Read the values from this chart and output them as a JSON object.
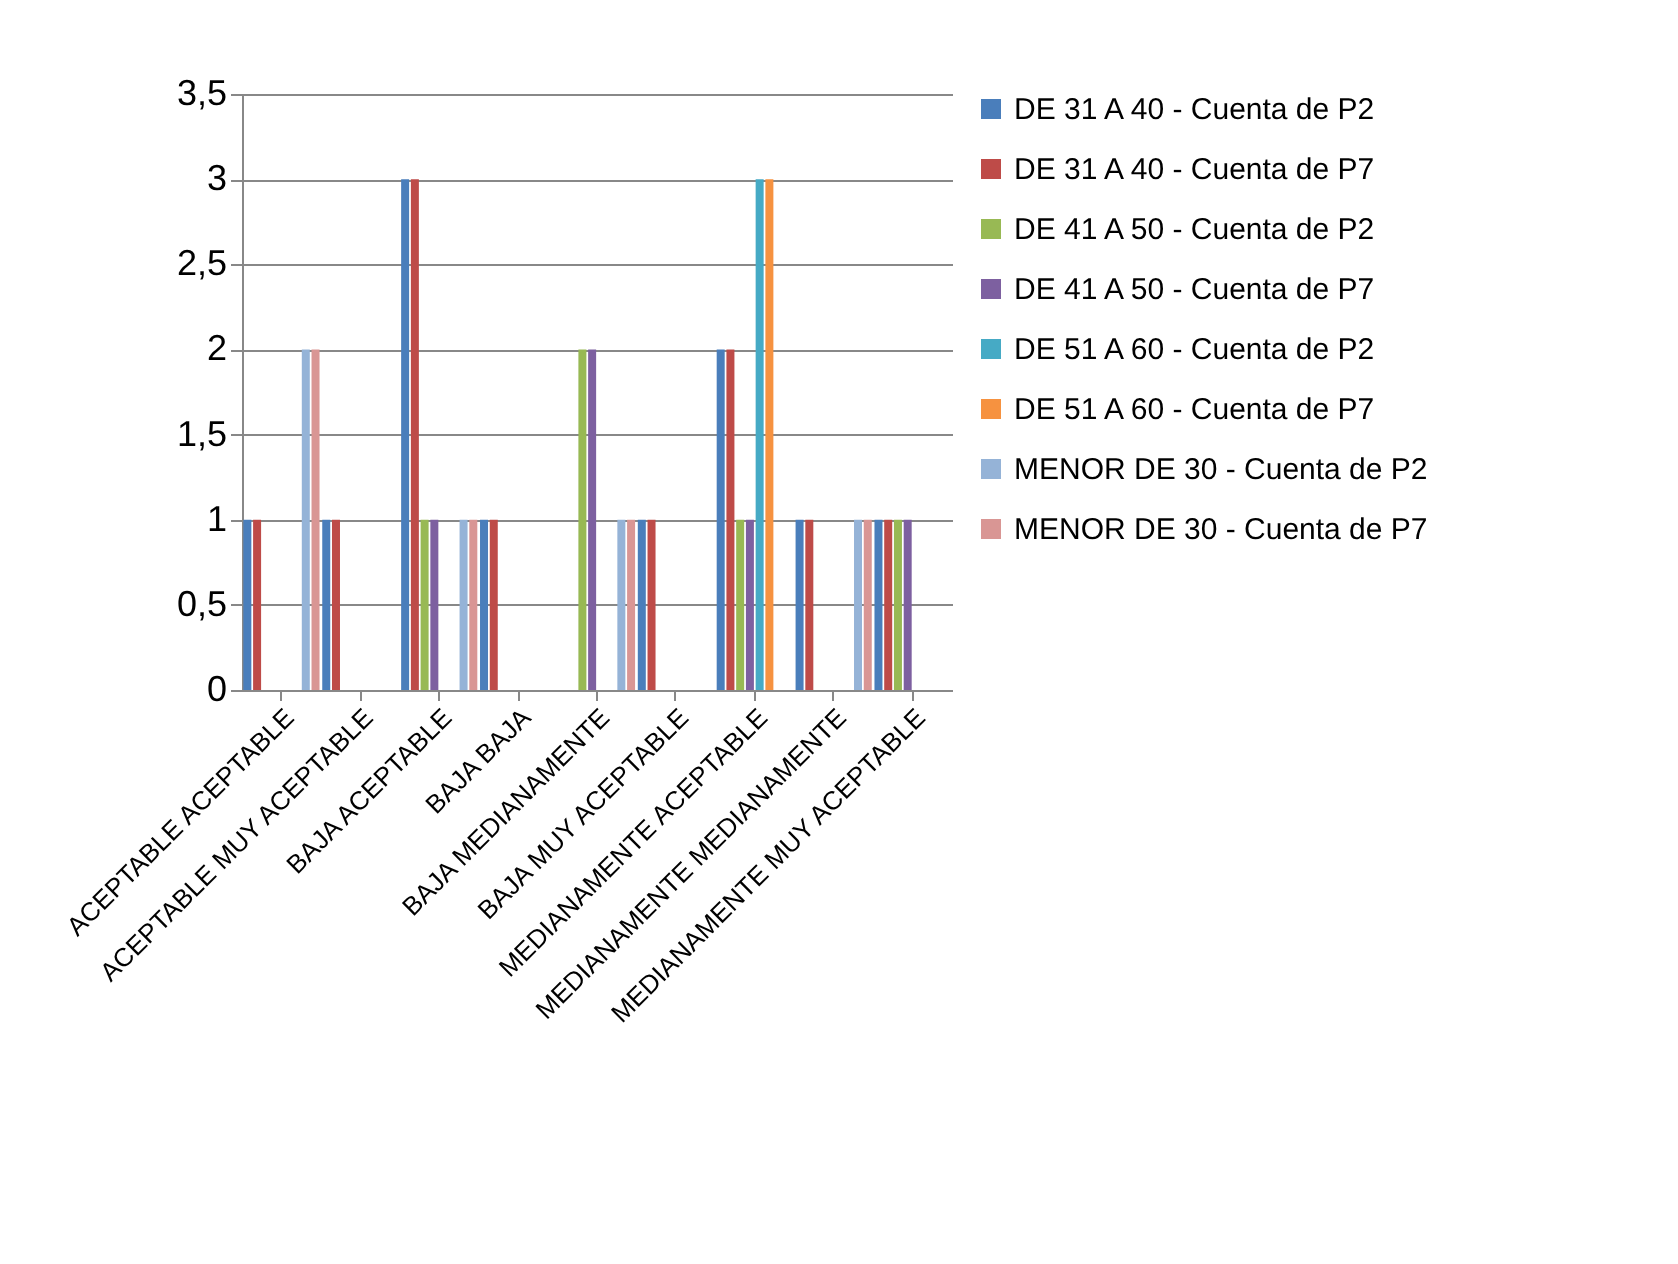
{
  "chart_data": {
    "type": "bar",
    "categories": [
      "ACEPTABLE ACEPTABLE",
      "ACEPTABLE MUY ACEPTABLE",
      "BAJA ACEPTABLE",
      "BAJA BAJA",
      "BAJA MEDIANAMENTE",
      "BAJA MUY ACEPTABLE",
      "MEDIANAMENTE ACEPTABLE",
      "MEDIANAMENTE MEDIANAMENTE",
      "MEDIANAMENTE MUY ACEPTABLE"
    ],
    "series": [
      {
        "name": "DE 31 A 40 - Cuenta de P2",
        "color": "#4a7ebb",
        "values": [
          1,
          1,
          3,
          1,
          null,
          1,
          2,
          1,
          1
        ]
      },
      {
        "name": "DE 31 A 40 - Cuenta de P7",
        "color": "#be4b48",
        "values": [
          1,
          1,
          3,
          1,
          null,
          1,
          2,
          1,
          1
        ]
      },
      {
        "name": "DE 41 A 50 - Cuenta de P2",
        "color": "#98b954",
        "values": [
          null,
          null,
          1,
          null,
          2,
          null,
          1,
          null,
          1
        ]
      },
      {
        "name": "DE 41 A 50 - Cuenta de P7",
        "color": "#7d60a0",
        "values": [
          null,
          null,
          1,
          null,
          2,
          null,
          1,
          null,
          1
        ]
      },
      {
        "name": "DE 51 A 60 - Cuenta de P2",
        "color": "#46aac5",
        "values": [
          null,
          null,
          null,
          null,
          null,
          null,
          3,
          null,
          null
        ]
      },
      {
        "name": "DE 51 A 60 - Cuenta de P7",
        "color": "#f69240",
        "values": [
          null,
          null,
          null,
          null,
          null,
          null,
          3,
          null,
          null
        ]
      },
      {
        "name": "MENOR DE 30 - Cuenta de P2",
        "color": "#95b3d7",
        "values": [
          2,
          null,
          1,
          null,
          1,
          null,
          null,
          1,
          null
        ]
      },
      {
        "name": "MENOR DE 30 - Cuenta de P7",
        "color": "#d99694",
        "values": [
          2,
          null,
          1,
          null,
          1,
          null,
          null,
          1,
          null
        ]
      }
    ],
    "ylim": [
      0,
      3.5
    ],
    "yticks": [
      0,
      {
        "value": 0.5,
        "label": "0,5"
      },
      1,
      {
        "value": 1.5,
        "label": "1,5"
      },
      2,
      {
        "value": 2.5,
        "label": "2,5"
      },
      3,
      {
        "value": 3.5,
        "label": "3,5"
      }
    ],
    "grid": "y",
    "legend": "right"
  }
}
